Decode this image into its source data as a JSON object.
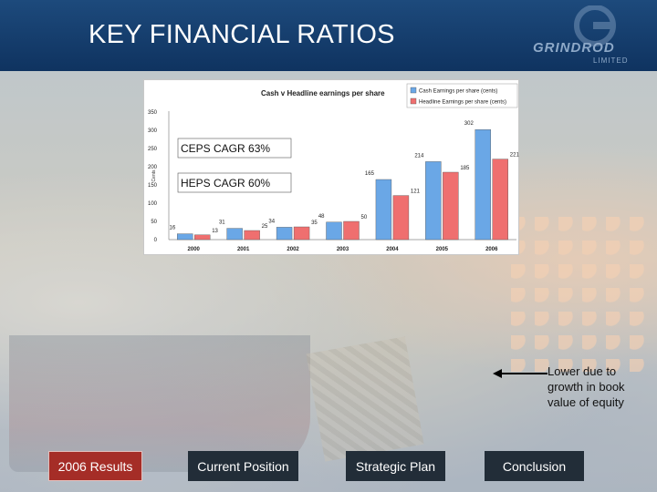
{
  "slide": {
    "title": "KEY FINANCIAL RATIOS",
    "logo_text": "GRINDROD",
    "logo_subtext": "LIMITED",
    "callout": [
      "Lower due to",
      "growth in book",
      "value of equity"
    ]
  },
  "nav": {
    "items": [
      {
        "label": "2006 Results",
        "active": true
      },
      {
        "label": "Current Position",
        "active": false
      },
      {
        "label": "Strategic Plan",
        "active": false
      },
      {
        "label": "Conclusion",
        "active": false
      }
    ]
  },
  "chart_data": {
    "type": "bar",
    "title": "Cash v Headline earnings per share",
    "ylabel": "Cents",
    "xlabel": "",
    "ylim": [
      0,
      350
    ],
    "yticks": [
      0,
      50,
      100,
      150,
      200,
      250,
      300,
      350
    ],
    "categories": [
      "2000",
      "2001",
      "2002",
      "2003",
      "2004",
      "2005",
      "2006"
    ],
    "series": [
      {
        "name": "Cash Earnings per share (cents)",
        "color": "#6aa7e6",
        "values": [
          16,
          31,
          34,
          48,
          165,
          214,
          302
        ]
      },
      {
        "name": "Headline Earnings per share (cents)",
        "color": "#ef6f6f",
        "values": [
          13,
          25,
          35,
          50,
          121,
          185,
          221
        ]
      }
    ],
    "legend_position": "top-right",
    "grid": false,
    "annotations": [
      "CEPS CAGR 63%",
      "HEPS CAGR 60%"
    ]
  },
  "colors": {
    "header": "#1d4a7c",
    "nav_active": "#a52d27",
    "nav_dark": "#222d38"
  }
}
